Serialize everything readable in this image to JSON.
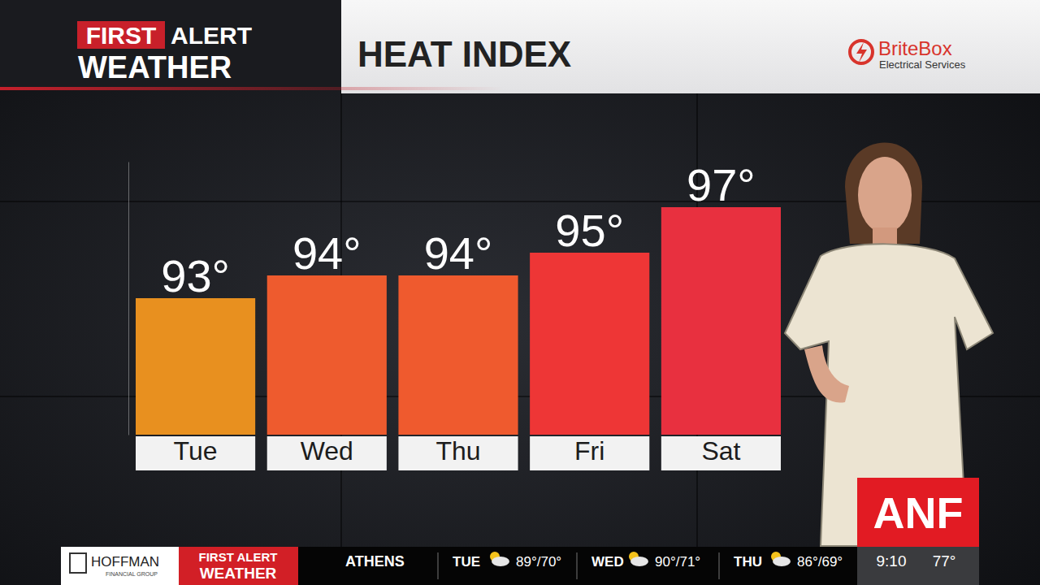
{
  "chart_data": {
    "type": "bar",
    "title": "HEAT INDEX",
    "categories": [
      "Tue",
      "Wed",
      "Thu",
      "Fri",
      "Sat"
    ],
    "values": [
      93,
      94,
      94,
      95,
      97
    ],
    "value_labels": [
      "93°",
      "94°",
      "94°",
      "95°",
      "97°"
    ],
    "colors": [
      "#e8901f",
      "#ee5b2e",
      "#ef5a2e",
      "#ee3636",
      "#e8303f"
    ],
    "ylim": [
      87,
      99
    ],
    "yticks": [],
    "data_labels": true,
    "tick_labels": "x"
  },
  "branding": {
    "logo_red": "FIRST",
    "logo_rest": "ALERT",
    "logo_bottom": "WEATHER",
    "sponsor_name": "BriteBox",
    "sponsor_sub": "Electrical Services",
    "station": "ANF"
  },
  "ticker": {
    "sponsor": "HOFFMAN",
    "sponsor_sub": "FINANCIAL GROUP",
    "segment_top": "FIRST ALERT",
    "segment_bottom": "WEATHER",
    "city": "ATHENS",
    "days": [
      {
        "day": "TUE",
        "temps": "89°/70°"
      },
      {
        "day": "WED",
        "temps": "90°/71°"
      },
      {
        "day": "THU",
        "temps": "86°/69°"
      }
    ],
    "time": "9:10",
    "current_temp": "77°"
  }
}
